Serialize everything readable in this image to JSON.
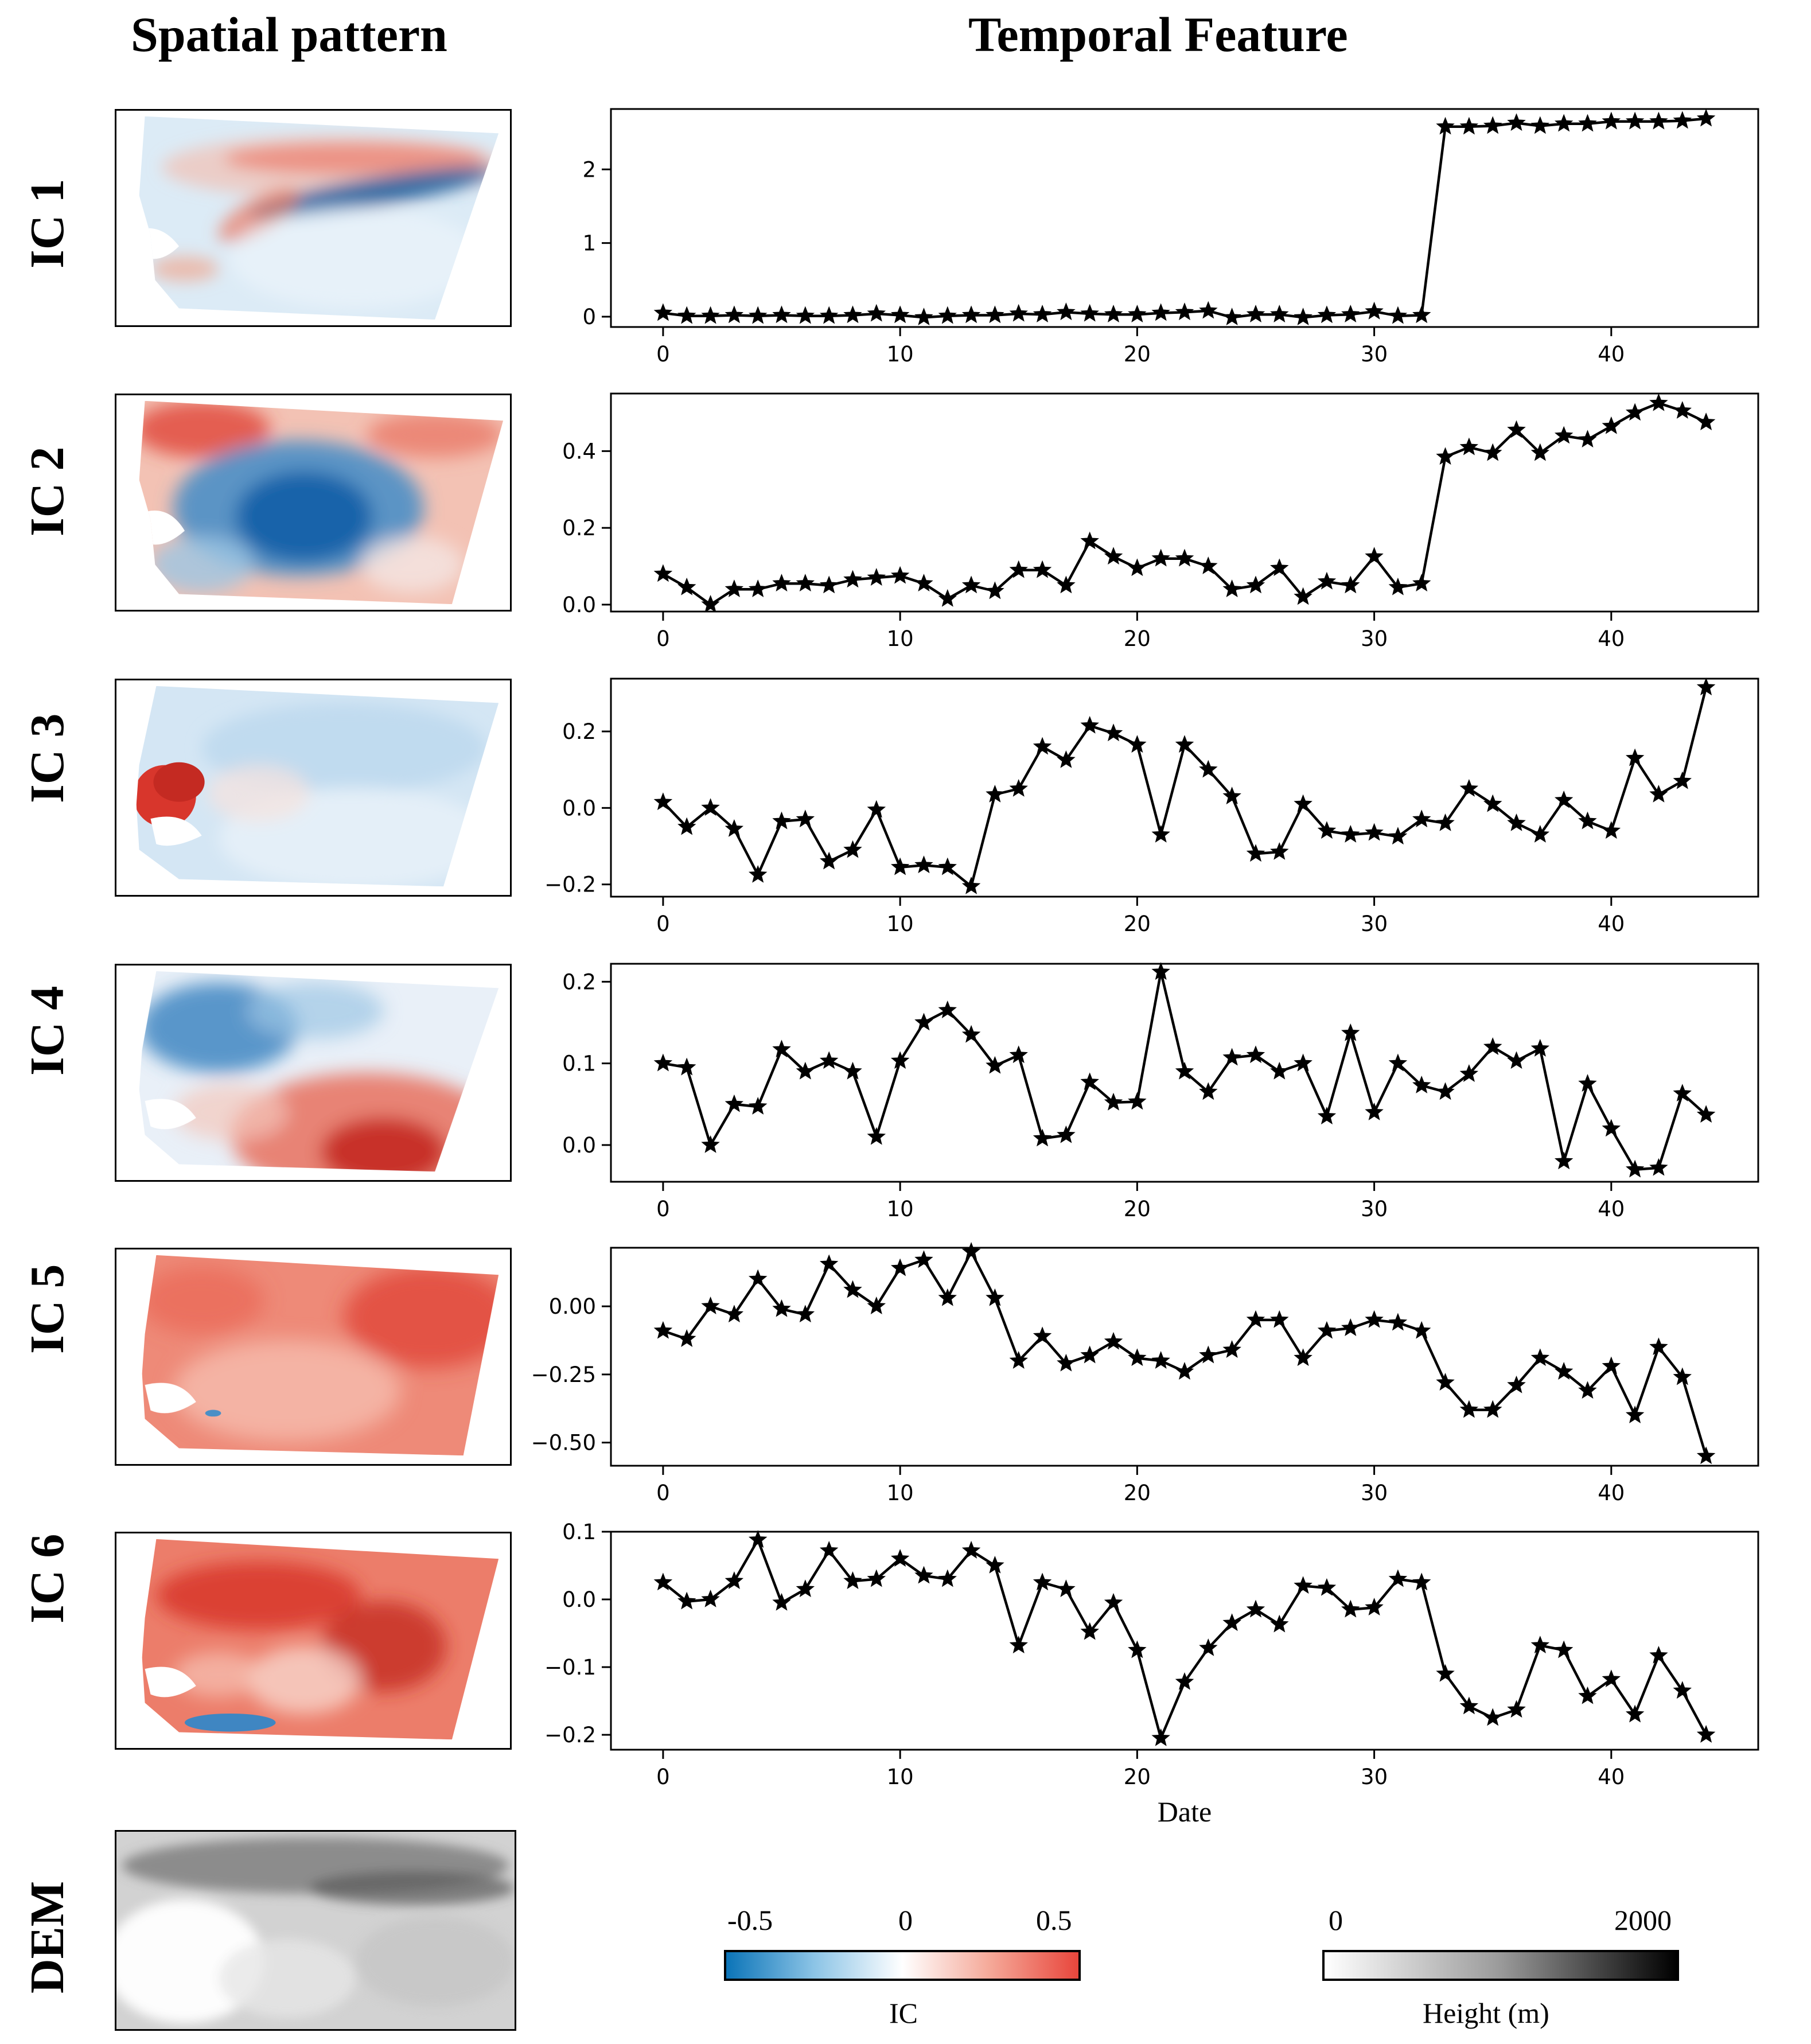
{
  "headers": {
    "spatial": "Spatial pattern",
    "temporal": "Temporal Feature"
  },
  "row_labels": [
    "IC 1",
    "IC 2",
    "IC 3",
    "IC 4",
    "IC 5",
    "IC 6",
    "DEM"
  ],
  "colors": {
    "ic_negative": "#1f77b4",
    "ic_positive": "#e0413a",
    "line": "#000000"
  },
  "colorbars": {
    "ic": {
      "label": "IC",
      "ticks": [
        "-0.5",
        "0",
        "0.5"
      ],
      "colors": [
        "#0b74b8",
        "#ffffff",
        "#e8463c"
      ]
    },
    "height": {
      "label": "Height (m)",
      "ticks": [
        "0",
        "2000"
      ],
      "colors": [
        "#ffffff",
        "#000000"
      ]
    }
  },
  "chart_data": [
    {
      "type": "line",
      "name": "IC 1",
      "xlabel": "",
      "marker": "star",
      "ylim": [
        -0.14,
        2.82
      ],
      "yticks": [
        "0",
        "1",
        "2"
      ],
      "ytick_values": [
        0,
        1,
        2
      ],
      "xlim": [
        -2.2,
        46.2
      ],
      "xticks": [
        0,
        10,
        20,
        30,
        40
      ],
      "y": [
        0.05,
        0.01,
        0.01,
        0.02,
        0.01,
        0.02,
        0.01,
        0.01,
        0.02,
        0.04,
        0.02,
        -0.01,
        0.01,
        0.02,
        0.02,
        0.04,
        0.03,
        0.06,
        0.04,
        0.03,
        0.03,
        0.05,
        0.06,
        0.08,
        -0.01,
        0.03,
        0.03,
        -0.01,
        0.02,
        0.03,
        0.07,
        0.01,
        0.02,
        2.58,
        2.58,
        2.59,
        2.63,
        2.59,
        2.62,
        2.62,
        2.65,
        2.65,
        2.65,
        2.66,
        2.69
      ]
    },
    {
      "type": "line",
      "name": "IC 2",
      "xlabel": "",
      "marker": "star",
      "ylim": [
        -0.018,
        0.55
      ],
      "yticks": [
        "0.0",
        "0.2",
        "0.4"
      ],
      "ytick_values": [
        0,
        0.2,
        0.4
      ],
      "xlim": [
        -2.2,
        46.2
      ],
      "xticks": [
        0,
        10,
        20,
        30,
        40
      ],
      "y": [
        0.08,
        0.045,
        0.0,
        0.04,
        0.04,
        0.055,
        0.055,
        0.05,
        0.065,
        0.07,
        0.075,
        0.055,
        0.015,
        0.05,
        0.035,
        0.09,
        0.09,
        0.05,
        0.165,
        0.125,
        0.095,
        0.12,
        0.12,
        0.1,
        0.04,
        0.05,
        0.095,
        0.02,
        0.06,
        0.05,
        0.125,
        0.045,
        0.055,
        0.385,
        0.41,
        0.395,
        0.455,
        0.395,
        0.44,
        0.43,
        0.465,
        0.5,
        0.525,
        0.505,
        0.475
      ]
    },
    {
      "type": "line",
      "name": "IC 3",
      "xlabel": "",
      "marker": "star",
      "ylim": [
        -0.232,
        0.338
      ],
      "yticks": [
        "−0.2",
        "0.0",
        "0.2"
      ],
      "ytick_values": [
        -0.2,
        0,
        0.2
      ],
      "xlim": [
        -2.2,
        46.2
      ],
      "xticks": [
        0,
        10,
        20,
        30,
        40
      ],
      "y": [
        0.015,
        -0.05,
        0.0,
        -0.055,
        -0.175,
        -0.035,
        -0.03,
        -0.14,
        -0.11,
        -0.005,
        -0.155,
        -0.15,
        -0.155,
        -0.205,
        0.035,
        0.05,
        0.16,
        0.125,
        0.215,
        0.195,
        0.165,
        -0.07,
        0.165,
        0.1,
        0.03,
        -0.12,
        -0.115,
        0.01,
        -0.06,
        -0.07,
        -0.065,
        -0.075,
        -0.03,
        -0.04,
        0.05,
        0.01,
        -0.04,
        -0.07,
        0.02,
        -0.035,
        -0.06,
        0.13,
        0.035,
        0.07,
        0.315
      ]
    },
    {
      "type": "line",
      "name": "IC 4",
      "xlabel": "",
      "marker": "star",
      "ylim": [
        -0.045,
        0.222
      ],
      "yticks": [
        "0.0",
        "0.1",
        "0.2"
      ],
      "ytick_values": [
        0,
        0.1,
        0.2
      ],
      "xlim": [
        -2.2,
        46.2
      ],
      "xticks": [
        0,
        10,
        20,
        30,
        40
      ],
      "y": [
        0.1,
        0.095,
        0.0,
        0.05,
        0.047,
        0.117,
        0.09,
        0.103,
        0.09,
        0.01,
        0.103,
        0.15,
        0.165,
        0.135,
        0.097,
        0.11,
        0.008,
        0.012,
        0.077,
        0.052,
        0.053,
        0.212,
        0.09,
        0.065,
        0.107,
        0.11,
        0.09,
        0.1,
        0.035,
        0.137,
        0.04,
        0.1,
        0.073,
        0.065,
        0.087,
        0.12,
        0.103,
        0.118,
        -0.02,
        0.075,
        0.02,
        -0.03,
        -0.028,
        0.063,
        0.037
      ]
    },
    {
      "type": "line",
      "name": "IC 5",
      "xlabel": "",
      "marker": "star",
      "ylim": [
        -0.585,
        0.215
      ],
      "yticks": [
        "−0.50",
        "−0.25",
        "0.00"
      ],
      "ytick_values": [
        -0.5,
        -0.25,
        0
      ],
      "xlim": [
        -2.2,
        46.2
      ],
      "xticks": [
        0,
        10,
        20,
        30,
        40
      ],
      "y": [
        -0.09,
        -0.12,
        0.0,
        -0.03,
        0.1,
        -0.01,
        -0.03,
        0.155,
        0.06,
        0.0,
        0.14,
        0.17,
        0.03,
        0.2,
        0.03,
        -0.2,
        -0.11,
        -0.21,
        -0.18,
        -0.13,
        -0.19,
        -0.2,
        -0.24,
        -0.18,
        -0.16,
        -0.05,
        -0.05,
        -0.19,
        -0.09,
        -0.08,
        -0.05,
        -0.06,
        -0.09,
        -0.28,
        -0.38,
        -0.38,
        -0.29,
        -0.19,
        -0.24,
        -0.31,
        -0.22,
        -0.4,
        -0.15,
        -0.26,
        -0.55
      ]
    },
    {
      "type": "line",
      "name": "IC 6",
      "xlabel": "Date",
      "marker": "star",
      "ylim": [
        -0.222,
        0.1
      ],
      "yticks": [
        "−0.2",
        "−0.1",
        "0.0",
        "0.1"
      ],
      "ytick_values": [
        -0.2,
        -0.1,
        0,
        0.1
      ],
      "xlim": [
        -2.2,
        46.2
      ],
      "xticks": [
        0,
        10,
        20,
        30,
        40
      ],
      "y": [
        0.025,
        -0.003,
        0.0,
        0.027,
        0.088,
        -0.005,
        0.015,
        0.072,
        0.027,
        0.03,
        0.06,
        0.035,
        0.03,
        0.072,
        0.05,
        -0.068,
        0.025,
        0.015,
        -0.048,
        -0.005,
        -0.075,
        -0.205,
        -0.122,
        -0.072,
        -0.035,
        -0.015,
        -0.037,
        0.02,
        0.017,
        -0.015,
        -0.012,
        0.03,
        0.025,
        -0.11,
        -0.158,
        -0.175,
        -0.163,
        -0.068,
        -0.075,
        -0.143,
        -0.118,
        -0.17,
        -0.083,
        -0.135,
        -0.2
      ]
    }
  ]
}
